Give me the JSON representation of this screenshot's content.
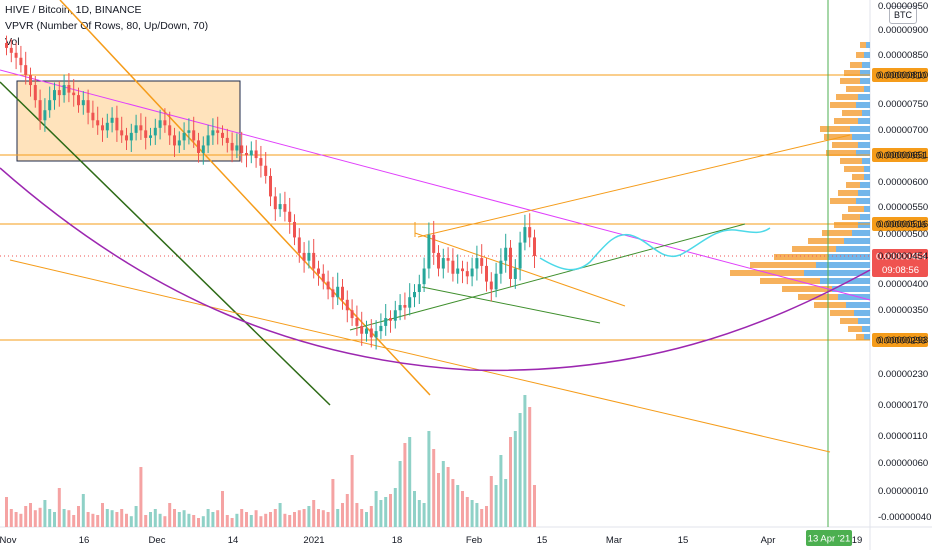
{
  "header": {
    "title": "HIVE / Bitcoin, 1D, BINANCE",
    "vpvr": "VPVR (Number Of Rows, 80, Up/Down, 70)",
    "vol": "Vol"
  },
  "currency_button": "BTC",
  "colors": {
    "up": "#26a69a",
    "down": "#ef5350",
    "up_vol": "#8fd1c7",
    "down_vol": "#f5a3a3",
    "orange": "#f59c1a",
    "magenta": "#e040fb",
    "purple": "#9c27b0",
    "darkgreen": "#2e6b17",
    "green_line": "#3f8f2d",
    "cyan": "#4dd9e8",
    "vline": "#4caf50",
    "box": "#ffd9a6",
    "vpvr_up": "#5aa9e6",
    "vpvr_down": "#f5a84a"
  },
  "chart_data": {
    "type": "candlestick",
    "symbol": "HIVE / Bitcoin",
    "interval": "1D",
    "exchange": "BINANCE",
    "y_axis_ticks": [
      "0.00000950",
      "0.00000900",
      "0.00000850",
      "0.00000810",
      "0.00000750",
      "0.00000700",
      "0.00000651",
      "0.00000600",
      "0.00000550",
      "0.00000516",
      "0.00000500",
      "0.00000454",
      "0.00000400",
      "0.00000350",
      "0.00000293",
      "0.00000230",
      "0.00000170",
      "0.00000110",
      "0.00000060",
      "0.00000010",
      "-0.00000040"
    ],
    "x_axis_ticks": [
      "Nov",
      "16",
      "Dec",
      "14",
      "2021",
      "18",
      "Feb",
      "15",
      "Mar",
      "15",
      "Apr",
      "19"
    ],
    "price_tags": [
      {
        "label": "0.00000810",
        "value": 8.1e-06
      },
      {
        "label": "0.00000651",
        "value": 6.51e-06
      },
      {
        "label": "0.00000516",
        "value": 5.16e-06
      },
      {
        "label": "0.00000293",
        "value": 2.93e-06
      }
    ],
    "last_price": {
      "value": "0.00000454",
      "countdown": "09:08:56"
    },
    "date_marker": "13 Apr '21",
    "candles_close": [
      8.65,
      8.55,
      8.45,
      8.3,
      8.1,
      7.9,
      7.6,
      7.2,
      7.4,
      7.6,
      7.8,
      7.7,
      7.9,
      7.75,
      7.7,
      7.5,
      7.6,
      7.35,
      7.2,
      7.1,
      7.0,
      7.15,
      7.25,
      7.0,
      6.9,
      6.8,
      6.95,
      7.1,
      7.0,
      6.85,
      6.9,
      7.05,
      7.2,
      7.1,
      6.9,
      6.7,
      6.8,
      6.95,
      7.0,
      6.8,
      6.55,
      6.7,
      6.9,
      7.0,
      6.95,
      6.85,
      6.75,
      6.6,
      6.7,
      6.55,
      6.5,
      6.6,
      6.45,
      6.3,
      6.1,
      5.7,
      5.45,
      5.55,
      5.4,
      5.2,
      4.9,
      4.6,
      4.45,
      4.6,
      4.3,
      4.2,
      4.05,
      3.9,
      3.75,
      3.95,
      3.7,
      3.5,
      3.35,
      3.2,
      3.05,
      3.15,
      2.98,
      3.1,
      3.2,
      3.35,
      3.3,
      3.5,
      3.6,
      3.55,
      3.75,
      3.85,
      4.0,
      4.3,
      4.95,
      4.6,
      4.3,
      4.5,
      4.45,
      4.2,
      4.3,
      4.25,
      4.15,
      4.3,
      4.5,
      4.35,
      4.05,
      3.9,
      4.2,
      4.45,
      4.7,
      4.1,
      4.3,
      4.8,
      5.1,
      4.9,
      4.54
    ],
    "volumes": [
      50,
      30,
      25,
      22,
      35,
      40,
      28,
      32,
      45,
      30,
      25,
      65,
      30,
      28,
      20,
      35,
      55,
      25,
      22,
      20,
      40,
      30,
      28,
      25,
      30,
      22,
      18,
      35,
      100,
      20,
      25,
      30,
      22,
      18,
      40,
      30,
      25,
      28,
      22,
      20,
      15,
      18,
      30,
      25,
      28,
      60,
      20,
      15,
      22,
      30,
      25,
      20,
      28,
      18,
      22,
      25,
      30,
      40,
      22,
      20,
      25,
      28,
      30,
      35,
      45,
      30,
      28,
      25,
      80,
      30,
      40,
      55,
      120,
      40,
      30,
      25,
      35,
      60,
      45,
      50,
      55,
      65,
      110,
      140,
      150,
      60,
      45,
      40,
      160,
      130,
      90,
      110,
      100,
      80,
      70,
      60,
      50,
      45,
      40,
      30,
      35,
      85,
      70,
      120,
      80,
      150,
      160,
      190,
      220,
      200,
      70
    ]
  }
}
